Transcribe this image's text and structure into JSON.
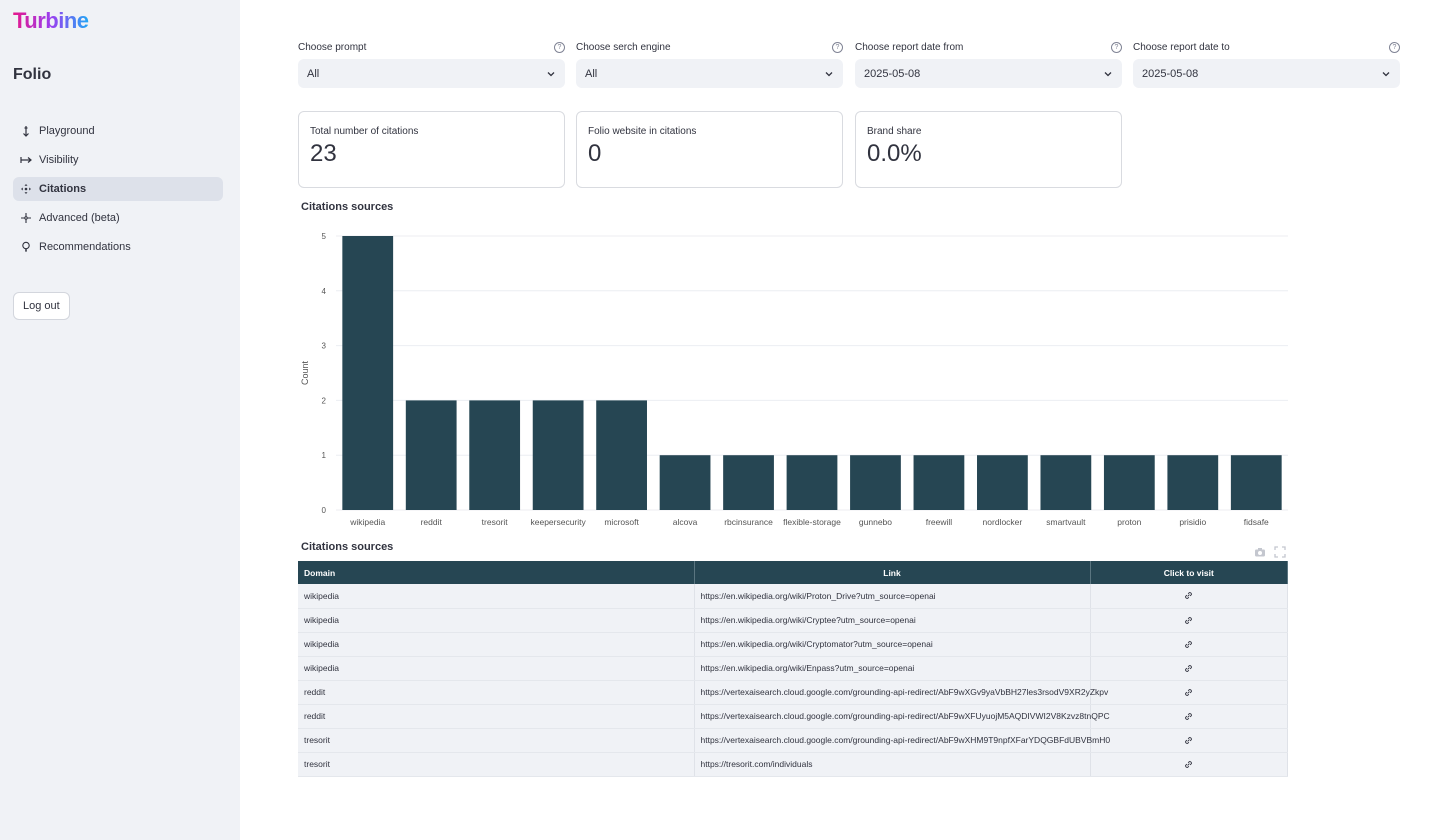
{
  "app": {
    "logo": "Turbine",
    "brand": "Folio"
  },
  "sidebar": {
    "items": [
      {
        "label": "Playground",
        "icon": "playground-icon",
        "active": false
      },
      {
        "label": "Visibility",
        "icon": "visibility-icon",
        "active": false
      },
      {
        "label": "Citations",
        "icon": "citations-icon",
        "active": true
      },
      {
        "label": "Advanced (beta)",
        "icon": "advanced-icon",
        "active": false
      },
      {
        "label": "Recommendations",
        "icon": "lightbulb-icon",
        "active": false
      }
    ],
    "logout": "Log out"
  },
  "filters": [
    {
      "label": "Choose prompt",
      "value": "All"
    },
    {
      "label": "Choose serch engine",
      "value": "All"
    },
    {
      "label": "Choose report date from",
      "value": "2025-05-08"
    },
    {
      "label": "Choose report date to",
      "value": "2025-05-08"
    }
  ],
  "metrics": [
    {
      "label": "Total number of citations",
      "value": "23"
    },
    {
      "label": "Folio website in citations",
      "value": "0"
    },
    {
      "label": "Brand share",
      "value": "0.0%"
    }
  ],
  "chart_section_title": "Citations sources",
  "chart_data": {
    "type": "bar",
    "title": "",
    "xlabel": "",
    "ylabel": "Count",
    "ylim": [
      0,
      5
    ],
    "yticks": [
      0,
      1,
      2,
      3,
      4,
      5
    ],
    "grid": true,
    "color": "#264653",
    "categories": [
      "wikipedia",
      "reddit",
      "tresorit",
      "keepersecurity",
      "microsoft",
      "alcova",
      "rbcinsurance",
      "flexible-storage",
      "gunnebo",
      "freewill",
      "nordlocker",
      "smartvault",
      "proton",
      "prisidio",
      "fidsafe"
    ],
    "values": [
      5,
      2,
      2,
      2,
      2,
      1,
      1,
      1,
      1,
      1,
      1,
      1,
      1,
      1,
      1
    ]
  },
  "table": {
    "title": "Citations sources",
    "headers": {
      "domain": "Domain",
      "link": "Link",
      "visit": "Click to visit"
    },
    "rows": [
      {
        "domain": "wikipedia",
        "link": "https://en.wikipedia.org/wiki/Proton_Drive?utm_source=openai"
      },
      {
        "domain": "wikipedia",
        "link": "https://en.wikipedia.org/wiki/Cryptee?utm_source=openai"
      },
      {
        "domain": "wikipedia",
        "link": "https://en.wikipedia.org/wiki/Cryptomator?utm_source=openai"
      },
      {
        "domain": "wikipedia",
        "link": "https://en.wikipedia.org/wiki/Enpass?utm_source=openai"
      },
      {
        "domain": "reddit",
        "link": "https://vertexaisearch.cloud.google.com/grounding-api-redirect/AbF9wXGv9yaVbBH27les3rsodV9XR2yZkpv"
      },
      {
        "domain": "reddit",
        "link": "https://vertexaisearch.cloud.google.com/grounding-api-redirect/AbF9wXFUyuojM5AQDIVWI2V8Kzvz8tnQPC"
      },
      {
        "domain": "tresorit",
        "link": "https://vertexaisearch.cloud.google.com/grounding-api-redirect/AbF9wXHM9T9npfXFarYDQGBFdUBVBmH0"
      },
      {
        "domain": "tresorit",
        "link": "https://tresorit.com/individuals"
      }
    ]
  }
}
